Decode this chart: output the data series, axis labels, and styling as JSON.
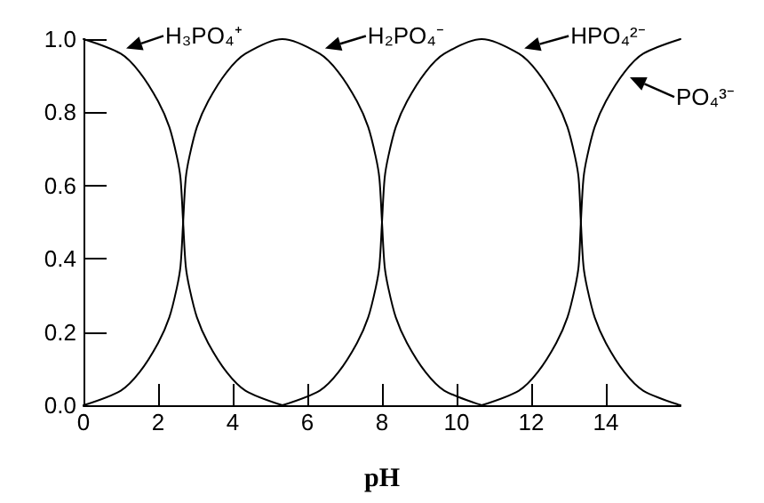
{
  "chart_data": {
    "type": "line",
    "xlabel": "pH",
    "xlim": [
      0,
      16
    ],
    "xticks": [
      0,
      2,
      4,
      6,
      8,
      10,
      12,
      14
    ],
    "ylim": [
      0,
      1
    ],
    "yticks": [
      {
        "value": 0,
        "label": "0.0"
      },
      {
        "value": 0.2,
        "label": "0.2"
      },
      {
        "value": 0.4,
        "label": "0.4"
      },
      {
        "value": 0.6,
        "label": "0.6"
      },
      {
        "value": 0.8,
        "label": "0.8"
      },
      {
        "value": 1,
        "label": "1.0"
      }
    ],
    "grid": false,
    "legend": "top",
    "marker": "none",
    "line_style": "solid",
    "series": [
      {
        "name": "H₃PO₄⁺",
        "color": "#000000",
        "x": [
          0,
          1,
          1.5,
          2,
          2.3,
          2.5,
          2.6,
          2.67,
          2.74,
          2.84,
          3.04,
          3.34,
          3.84,
          4.34,
          5.33
        ],
        "values": [
          1.0,
          0.96,
          0.91,
          0.83,
          0.76,
          0.68,
          0.62,
          0.5,
          0.38,
          0.32,
          0.24,
          0.17,
          0.09,
          0.04,
          0.0
        ]
      },
      {
        "name": "H₂PO₄⁻",
        "color": "#000000",
        "x": [
          0,
          1,
          1.5,
          2,
          2.3,
          2.5,
          2.6,
          2.67,
          2.74,
          2.84,
          3.04,
          3.34,
          3.84,
          4.34,
          5.33,
          6.33,
          6.83,
          7.33,
          7.63,
          7.83,
          7.93,
          8.0,
          8.07,
          8.17,
          8.37,
          8.67,
          9.17,
          9.67,
          10.67
        ],
        "values": [
          0.0,
          0.04,
          0.09,
          0.17,
          0.24,
          0.32,
          0.38,
          0.5,
          0.62,
          0.68,
          0.76,
          0.83,
          0.91,
          0.96,
          1.0,
          0.96,
          0.91,
          0.83,
          0.76,
          0.68,
          0.62,
          0.5,
          0.38,
          0.32,
          0.24,
          0.17,
          0.09,
          0.04,
          0.0
        ]
      },
      {
        "name": "HPO₄²⁻",
        "color": "#000000",
        "x": [
          5.33,
          6.33,
          6.83,
          7.33,
          7.63,
          7.83,
          7.93,
          8.0,
          8.07,
          8.17,
          8.37,
          8.67,
          9.17,
          9.67,
          10.67,
          11.67,
          12.17,
          12.67,
          12.97,
          13.17,
          13.27,
          13.33,
          13.4,
          13.5,
          13.7,
          14.0,
          14.5,
          15.0,
          16.0
        ],
        "values": [
          0.0,
          0.04,
          0.09,
          0.17,
          0.24,
          0.32,
          0.38,
          0.5,
          0.62,
          0.68,
          0.76,
          0.83,
          0.91,
          0.96,
          1.0,
          0.96,
          0.91,
          0.83,
          0.76,
          0.68,
          0.62,
          0.5,
          0.38,
          0.32,
          0.24,
          0.17,
          0.09,
          0.04,
          0.0
        ]
      },
      {
        "name": "PO₄³⁻",
        "color": "#000000",
        "x": [
          10.67,
          11.67,
          12.17,
          12.67,
          12.97,
          13.17,
          13.27,
          13.33,
          13.4,
          13.5,
          13.7,
          14.0,
          14.5,
          15.0,
          16.0
        ],
        "values": [
          0.0,
          0.04,
          0.09,
          0.17,
          0.24,
          0.32,
          0.38,
          0.5,
          0.62,
          0.68,
          0.76,
          0.83,
          0.91,
          0.96,
          1.0
        ]
      }
    ]
  }
}
